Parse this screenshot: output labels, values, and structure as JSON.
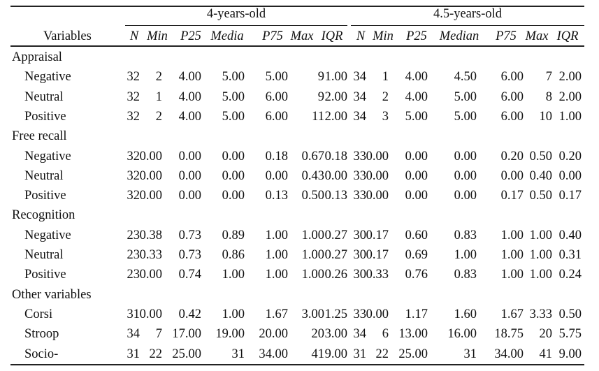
{
  "table": {
    "stub_header": "Variables",
    "groups": [
      {
        "label": "4-years-old"
      },
      {
        "label": "4.5-years-old"
      }
    ],
    "columns_group1": [
      "N",
      "Min",
      "P25",
      "Media",
      "P75",
      "Max",
      "IQR"
    ],
    "columns_group2": [
      "N",
      "Min",
      "P25",
      "Median",
      "P75",
      "Max",
      "IQR"
    ],
    "sections": [
      {
        "title": "Appraisal",
        "rows": [
          {
            "label": "Negative",
            "g1": [
              "32",
              "2",
              "4.00",
              "5.00",
              "5.00",
              "9",
              "1.00"
            ],
            "g2": [
              "34",
              "1",
              "4.00",
              "4.50",
              "6.00",
              "7",
              "2.00"
            ]
          },
          {
            "label": "Neutral",
            "g1": [
              "32",
              "1",
              "4.00",
              "5.00",
              "6.00",
              "9",
              "2.00"
            ],
            "g2": [
              "34",
              "2",
              "4.00",
              "5.00",
              "6.00",
              "8",
              "2.00"
            ]
          },
          {
            "label": "Positive",
            "g1": [
              "32",
              "2",
              "4.00",
              "5.00",
              "6.00",
              "11",
              "2.00"
            ],
            "g2": [
              "34",
              "3",
              "5.00",
              "5.00",
              "6.00",
              "10",
              "1.00"
            ]
          }
        ]
      },
      {
        "title": "Free recall",
        "rows": [
          {
            "label": "Negative",
            "g1": [
              "32",
              "0.00",
              "0.00",
              "0.00",
              "0.18",
              "0.67",
              "0.18"
            ],
            "g2": [
              "33",
              "0.00",
              "0.00",
              "0.00",
              "0.20",
              "0.50",
              "0.20"
            ]
          },
          {
            "label": "Neutral",
            "g1": [
              "32",
              "0.00",
              "0.00",
              "0.00",
              "0.00",
              "0.43",
              "0.00"
            ],
            "g2": [
              "33",
              "0.00",
              "0.00",
              "0.00",
              "0.00",
              "0.40",
              "0.00"
            ]
          },
          {
            "label": "Positive",
            "g1": [
              "32",
              "0.00",
              "0.00",
              "0.00",
              "0.13",
              "0.50",
              "0.13"
            ],
            "g2": [
              "33",
              "0.00",
              "0.00",
              "0.00",
              "0.17",
              "0.50",
              "0.17"
            ]
          }
        ]
      },
      {
        "title": "Recognition",
        "rows": [
          {
            "label": "Negative",
            "g1": [
              "23",
              "0.38",
              "0.73",
              "0.89",
              "1.00",
              "1.00",
              "0.27"
            ],
            "g2": [
              "30",
              "0.17",
              "0.60",
              "0.83",
              "1.00",
              "1.00",
              "0.40"
            ]
          },
          {
            "label": "Neutral",
            "g1": [
              "23",
              "0.33",
              "0.73",
              "0.86",
              "1.00",
              "1.00",
              "0.27"
            ],
            "g2": [
              "30",
              "0.17",
              "0.69",
              "1.00",
              "1.00",
              "1.00",
              "0.31"
            ]
          },
          {
            "label": "Positive",
            "g1": [
              "23",
              "0.00",
              "0.74",
              "1.00",
              "1.00",
              "1.00",
              "0.26"
            ],
            "g2": [
              "30",
              "0.33",
              "0.76",
              "0.83",
              "1.00",
              "1.00",
              "0.24"
            ]
          }
        ]
      },
      {
        "title": "Other variables",
        "rows": [
          {
            "label": "Corsi",
            "g1": [
              "31",
              "0.00",
              "0.42",
              "1.00",
              "1.67",
              "3.00",
              "1.25"
            ],
            "g2": [
              "33",
              "0.00",
              "1.17",
              "1.60",
              "1.67",
              "3.33",
              "0.50"
            ]
          },
          {
            "label": "Stroop",
            "g1": [
              "34",
              "7",
              "17.00",
              "19.00",
              "20.00",
              "20",
              "3.00"
            ],
            "g2": [
              "34",
              "6",
              "13.00",
              "16.00",
              "18.75",
              "20",
              "5.75"
            ]
          },
          {
            "label": "Socio-",
            "g1": [
              "31",
              "22",
              "25.00",
              "31",
              "34.00",
              "41",
              "9.00"
            ],
            "g2": [
              "31",
              "22",
              "25.00",
              "31",
              "34.00",
              "41",
              "9.00"
            ]
          }
        ]
      }
    ]
  }
}
